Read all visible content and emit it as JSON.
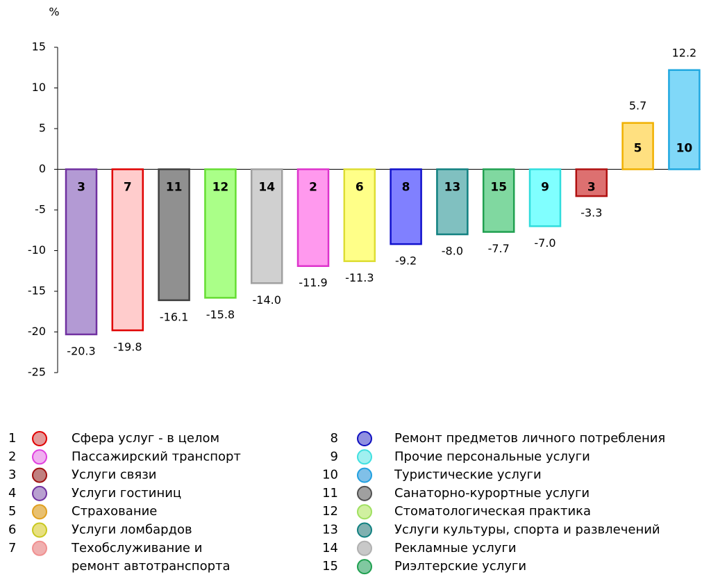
{
  "chart_data": {
    "type": "bar",
    "ylabel": "%",
    "categories": [
      "3",
      "7",
      "11",
      "12",
      "14",
      "2",
      "6",
      "8",
      "13",
      "15",
      "9",
      "3",
      "5",
      "10"
    ],
    "values": [
      -20.3,
      -19.8,
      -16.1,
      -15.8,
      -14.0,
      -11.9,
      -11.3,
      -9.2,
      -8.0,
      -7.7,
      -7.0,
      -3.3,
      5.7,
      12.2
    ],
    "value_labels": [
      "-20.3",
      "-19.8",
      "-16.1",
      "-15.8",
      "-14.0",
      "-11.9",
      "-11.3",
      "-9.2",
      "-8.0",
      "-7.7",
      "-7.0",
      "-3.3",
      "5.7",
      "12.2"
    ],
    "colors": [
      "#b39ad4",
      "#ffcccc",
      "#909090",
      "#aaff88",
      "#d0d0d0",
      "#ff99ee",
      "#ffff88",
      "#8080ff",
      "#80c0c0",
      "#80d8a0",
      "#80ffff",
      "#dd7070",
      "#ffe080",
      "#80d8f8"
    ],
    "edge_colors": [
      "#7030a0",
      "#e00000",
      "#404040",
      "#66dd33",
      "#a0a0a0",
      "#dd33cc",
      "#dddd33",
      "#1010cc",
      "#108080",
      "#20a050",
      "#30dddd",
      "#b01010",
      "#f0b000",
      "#20a8e0"
    ],
    "ylim": [
      -25,
      15
    ],
    "yticks": [
      -25,
      -20,
      -15,
      -10,
      -5,
      0,
      5,
      10,
      15
    ],
    "legend": [
      {
        "number": "1",
        "label": [
          "Сфера услуг - в целом"
        ],
        "color": "#e39a9a",
        "edge": "#e00000"
      },
      {
        "number": "2",
        "label": [
          "Пассажирский транспорт"
        ],
        "color": "#f0b0f0",
        "edge": "#e040e0"
      },
      {
        "number": "3",
        "label": [
          "Услуги связи"
        ],
        "color": "#c08080",
        "edge": "#a01010"
      },
      {
        "number": "4",
        "label": [
          "Услуги гостиниц"
        ],
        "color": "#b8a0d0",
        "edge": "#7030a0"
      },
      {
        "number": "5",
        "label": [
          "Страхование"
        ],
        "color": "#e8c070",
        "edge": "#e0a020"
      },
      {
        "number": "6",
        "label": [
          "Услуги ломбардов"
        ],
        "color": "#e8e080",
        "edge": "#c8c820"
      },
      {
        "number": "7",
        "label": [
          "Техобслуживание и",
          "ремонт автотранспорта"
        ],
        "color": "#f0b0b0",
        "edge": "#f09090"
      },
      {
        "number": "8",
        "label": [
          "Ремонт предметов личного потребления"
        ],
        "color": "#9090e0",
        "edge": "#1010c0"
      },
      {
        "number": "9",
        "label": [
          "Прочие персональные услуги"
        ],
        "color": "#a0f0f0",
        "edge": "#40e0e0"
      },
      {
        "number": "10",
        "label": [
          "Туристические услуги"
        ],
        "color": "#80c0e8",
        "edge": "#20a0e0"
      },
      {
        "number": "11",
        "label": [
          "Санаторно-курортные услуги"
        ],
        "color": "#a0a0a0",
        "edge": "#505050"
      },
      {
        "number": "12",
        "label": [
          "Стоматологическая практика"
        ],
        "color": "#d0f0a0",
        "edge": "#a0e060"
      },
      {
        "number": "13",
        "label": [
          "Услуги культуры, спорта и развлечений"
        ],
        "color": "#80b0b0",
        "edge": "#108080"
      },
      {
        "number": "14",
        "label": [
          "Рекламные услуги"
        ],
        "color": "#c8c8c8",
        "edge": "#b0b0b0"
      },
      {
        "number": "15",
        "label": [
          "Риэлтерские услуги"
        ],
        "color": "#80c8a0",
        "edge": "#20a050"
      }
    ]
  }
}
